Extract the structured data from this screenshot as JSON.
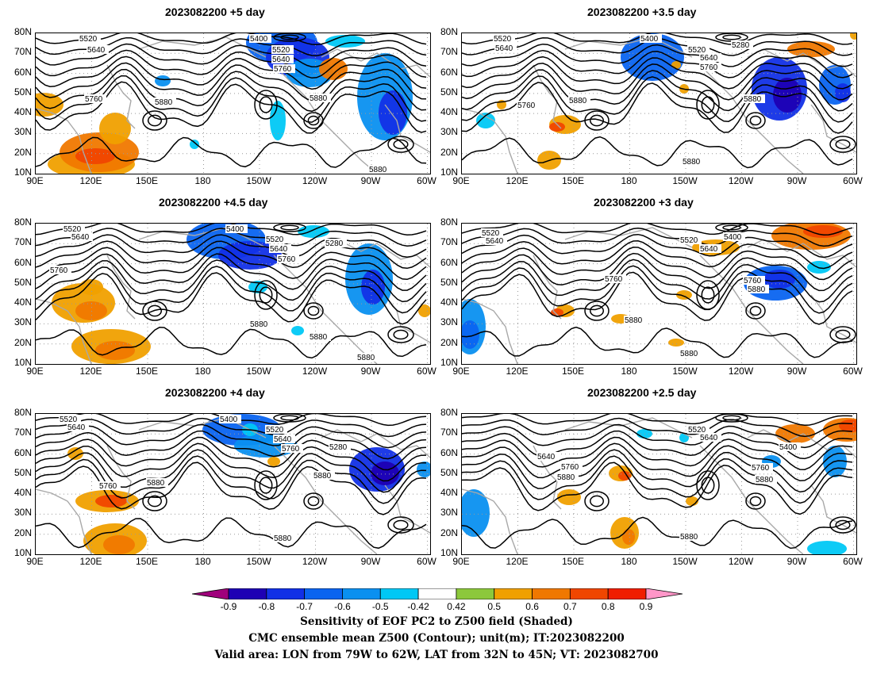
{
  "panels": [
    {
      "title": "2023082200  +5 day"
    },
    {
      "title": "2023082200  +3.5  day"
    },
    {
      "title": "2023082200  +4.5 day"
    },
    {
      "title": "2023082200  +3  day"
    },
    {
      "title": "2023082200  +4  day"
    },
    {
      "title": "2023082200  +2.5  day"
    }
  ],
  "axes": {
    "lat_labels": [
      "80N",
      "70N",
      "60N",
      "50N",
      "40N",
      "30N",
      "20N",
      "10N"
    ],
    "lon_labels": [
      "90E",
      "120E",
      "150E",
      "180",
      "150W",
      "120W",
      "90W",
      "60W"
    ]
  },
  "colorbar": {
    "labels": [
      "-0.9",
      "-0.8",
      "-0.7",
      "-0.6",
      "-0.5",
      "-0.42",
      "0.42",
      "0.5",
      "0.6",
      "0.7",
      "0.8",
      "0.9"
    ],
    "colors": [
      "#a0007c",
      "#1e00b4",
      "#1230e6",
      "#0a64f0",
      "#0a90f0",
      "#00c8f5",
      "#ffffff",
      "#8cc83c",
      "#f0a000",
      "#f07800",
      "#f04600",
      "#f01e00",
      "#ff96c8"
    ]
  },
  "caption": {
    "line1": "Sensitivity of EOF PC2 to Z500 field (Shaded)",
    "line2": "CMC ensemble mean Z500 (Contour); unit(m); IT:2023082200",
    "line3": "Valid area: LON from 79W to 62W, LAT from 32N to 45N; VT: 2023082700"
  },
  "contour_labels": {
    "p0": [
      "5520",
      "5640",
      "5400",
      "5520",
      "5640",
      "5760",
      "5760",
      "5880",
      "5880",
      "5880"
    ],
    "p1": [
      "5520",
      "5640",
      "5400",
      "5280",
      "5520",
      "5640",
      "5760",
      "5760",
      "5880",
      "5880",
      "5880"
    ],
    "p2": [
      "5520",
      "5640",
      "5400",
      "5520",
      "5640",
      "5760",
      "5280",
      "5760",
      "5880",
      "5880",
      "5880"
    ],
    "p3": [
      "5520",
      "5640",
      "5400",
      "5520",
      "5640",
      "5760",
      "5760",
      "5880",
      "5880",
      "5880"
    ],
    "p4": [
      "5520",
      "5640",
      "5400",
      "5520",
      "5640",
      "5760",
      "5280",
      "5760",
      "5880",
      "5880",
      "5880"
    ],
    "p5": [
      "5520",
      "5640",
      "5640",
      "5400",
      "5760",
      "5760",
      "5880",
      "5880",
      "5880"
    ]
  }
}
